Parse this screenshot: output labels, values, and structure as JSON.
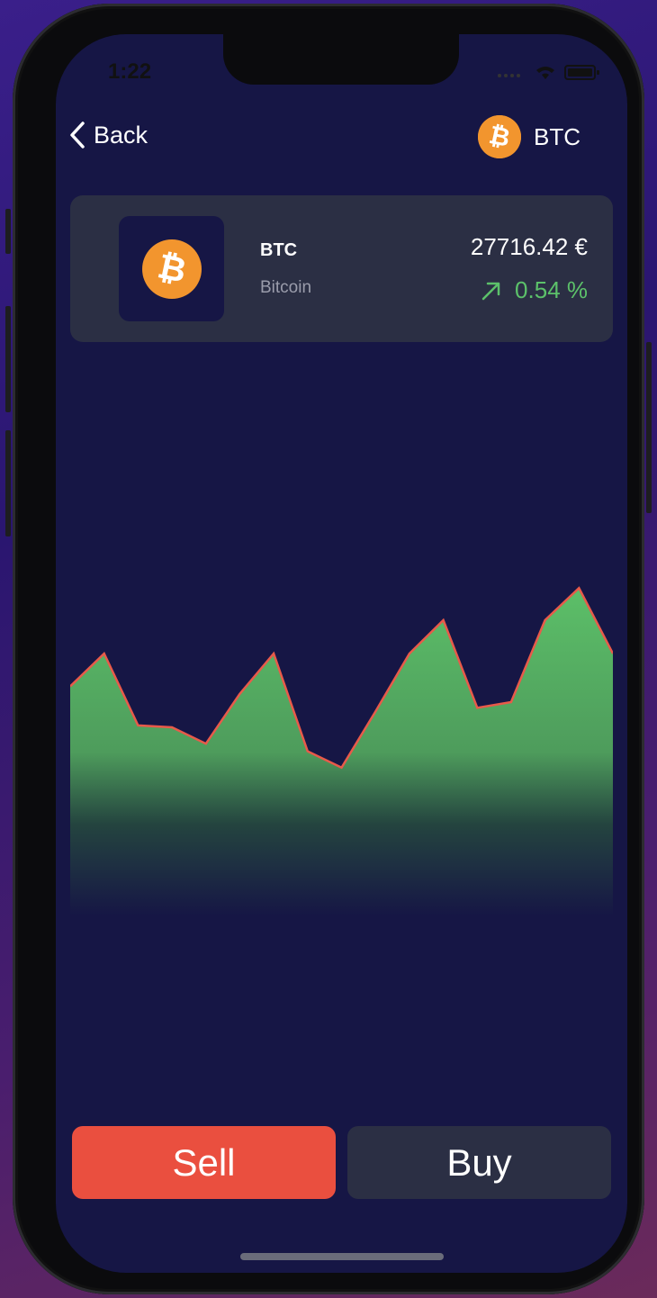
{
  "status": {
    "time": "1:22"
  },
  "nav": {
    "back_label": "Back",
    "coin_symbol": "BTC"
  },
  "coin": {
    "symbol": "BTC",
    "name": "Bitcoin",
    "price": "27716.42 €",
    "change": "0.54 %",
    "change_direction": "up"
  },
  "colors": {
    "background": "#161645",
    "card": "#2b2f44",
    "accent_orange": "#f2952e",
    "positive": "#5cc16a",
    "sell": "#ea4f3f",
    "line": "#e85a4a"
  },
  "chart_data": {
    "type": "area",
    "x": [
      0,
      1,
      2,
      3,
      4,
      5,
      6,
      7,
      8,
      9,
      10,
      11,
      12,
      13,
      14,
      15,
      16
    ],
    "values": [
      36.5,
      41.7,
      30.3,
      30.0,
      27.4,
      35.3,
      41.7,
      26.2,
      23.6,
      32.5,
      41.7,
      47.0,
      33.1,
      34.0,
      47.0,
      52.1,
      41.7
    ],
    "ylim": [
      0,
      60
    ],
    "title": "",
    "xlabel": "",
    "ylabel": ""
  },
  "actions": {
    "sell_label": "Sell",
    "buy_label": "Buy"
  }
}
